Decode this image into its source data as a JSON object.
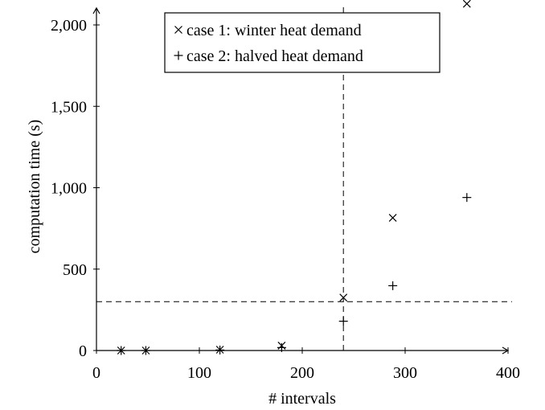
{
  "chart_data": {
    "type": "scatter",
    "title": "",
    "xlabel": "# intervals",
    "ylabel": "computation time (s)",
    "xlim": [
      0,
      400
    ],
    "ylim": [
      0,
      2100
    ],
    "x_ticks": [
      0,
      100,
      200,
      300,
      400
    ],
    "x_tick_labels": [
      "0",
      "100",
      "200",
      "300",
      "400"
    ],
    "y_ticks": [
      0,
      500,
      1000,
      1500,
      2000
    ],
    "y_tick_labels": [
      "0",
      "500",
      "1,000",
      "1,500",
      "2,000"
    ],
    "grid": false,
    "legend_position": "top-center",
    "series": [
      {
        "name": "case 1: winter heat demand",
        "marker": "x",
        "x": [
          24,
          48,
          120,
          180,
          240,
          288,
          360
        ],
        "y": [
          0,
          0,
          5,
          30,
          325,
          815,
          2130
        ]
      },
      {
        "name": "case 2: halved heat demand",
        "marker": "+",
        "x": [
          24,
          48,
          120,
          180,
          240,
          288,
          360
        ],
        "y": [
          0,
          0,
          3,
          18,
          180,
          398,
          940
        ]
      }
    ],
    "reference_lines": [
      {
        "orientation": "vertical",
        "value": 240,
        "style": "dashed"
      },
      {
        "orientation": "horizontal",
        "value": 300,
        "style": "dashed"
      }
    ]
  }
}
